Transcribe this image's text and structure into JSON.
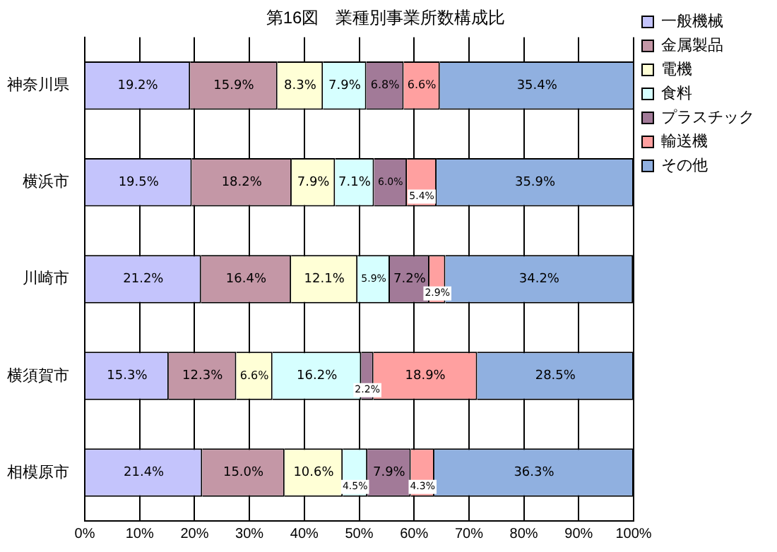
{
  "chart_data": {
    "type": "bar",
    "orientation": "horizontal",
    "stacked": true,
    "title": "第16図　業種別事業所数構成比",
    "categories": [
      "神奈川県",
      "横浜市",
      "川崎市",
      "横須賀市",
      "相模原市"
    ],
    "series": [
      {
        "name": "一般機械",
        "color": "#c4c4fc",
        "values": [
          19.2,
          19.5,
          21.2,
          15.3,
          21.4
        ],
        "value_labels": [
          "19.2%",
          "19.5%",
          "21.2%",
          "15.3%",
          "21.4%"
        ]
      },
      {
        "name": "金属製品",
        "color": "#c497a6",
        "values": [
          15.9,
          18.2,
          16.4,
          12.3,
          15.0
        ],
        "value_labels": [
          "15.9%",
          "18.2%",
          "16.4%",
          "12.3%",
          "15.0%"
        ]
      },
      {
        "name": "電機",
        "color": "#ffffd6",
        "values": [
          8.3,
          7.9,
          12.1,
          6.6,
          10.6
        ],
        "value_labels": [
          "8.3%",
          "7.9%",
          "12.1%",
          "6.6%",
          "10.6%"
        ]
      },
      {
        "name": "食料",
        "color": "#d6ffff",
        "values": [
          7.9,
          7.1,
          5.9,
          16.2,
          4.5
        ],
        "value_labels": [
          "7.9%",
          "7.1%",
          "5.9%",
          "16.2%",
          "4.5%"
        ]
      },
      {
        "name": "プラスチック",
        "color": "#a27a98",
        "values": [
          6.8,
          6.0,
          7.2,
          2.2,
          7.9
        ],
        "value_labels": [
          "6.8%",
          "6.0%",
          "7.2%",
          "2.2%",
          "7.9%"
        ]
      },
      {
        "name": "輸送機",
        "color": "#ffa0a0",
        "values": [
          6.6,
          5.4,
          2.9,
          18.9,
          4.3
        ],
        "value_labels": [
          "6.6%",
          "5.4%",
          "2.9%",
          "18.9%",
          "4.3%"
        ]
      },
      {
        "name": "その他",
        "color": "#90b0e0",
        "values": [
          35.4,
          35.9,
          34.2,
          28.5,
          36.3
        ],
        "value_labels": [
          "35.4%",
          "35.9%",
          "34.2%",
          "28.5%",
          "36.3%"
        ]
      }
    ],
    "xlim": [
      0,
      100
    ],
    "xticks": [
      {
        "value": 0,
        "label": "0%"
      },
      {
        "value": 10,
        "label": "10%"
      },
      {
        "value": 20,
        "label": "20%"
      },
      {
        "value": 30,
        "label": "30%"
      },
      {
        "value": 40,
        "label": "40%"
      },
      {
        "value": 50,
        "label": "50%"
      },
      {
        "value": 60,
        "label": "60%"
      },
      {
        "value": 70,
        "label": "70%"
      },
      {
        "value": 80,
        "label": "80%"
      },
      {
        "value": 90,
        "label": "90%"
      },
      {
        "value": 100,
        "label": "100%"
      }
    ],
    "grid": "x",
    "legend": "top right"
  }
}
